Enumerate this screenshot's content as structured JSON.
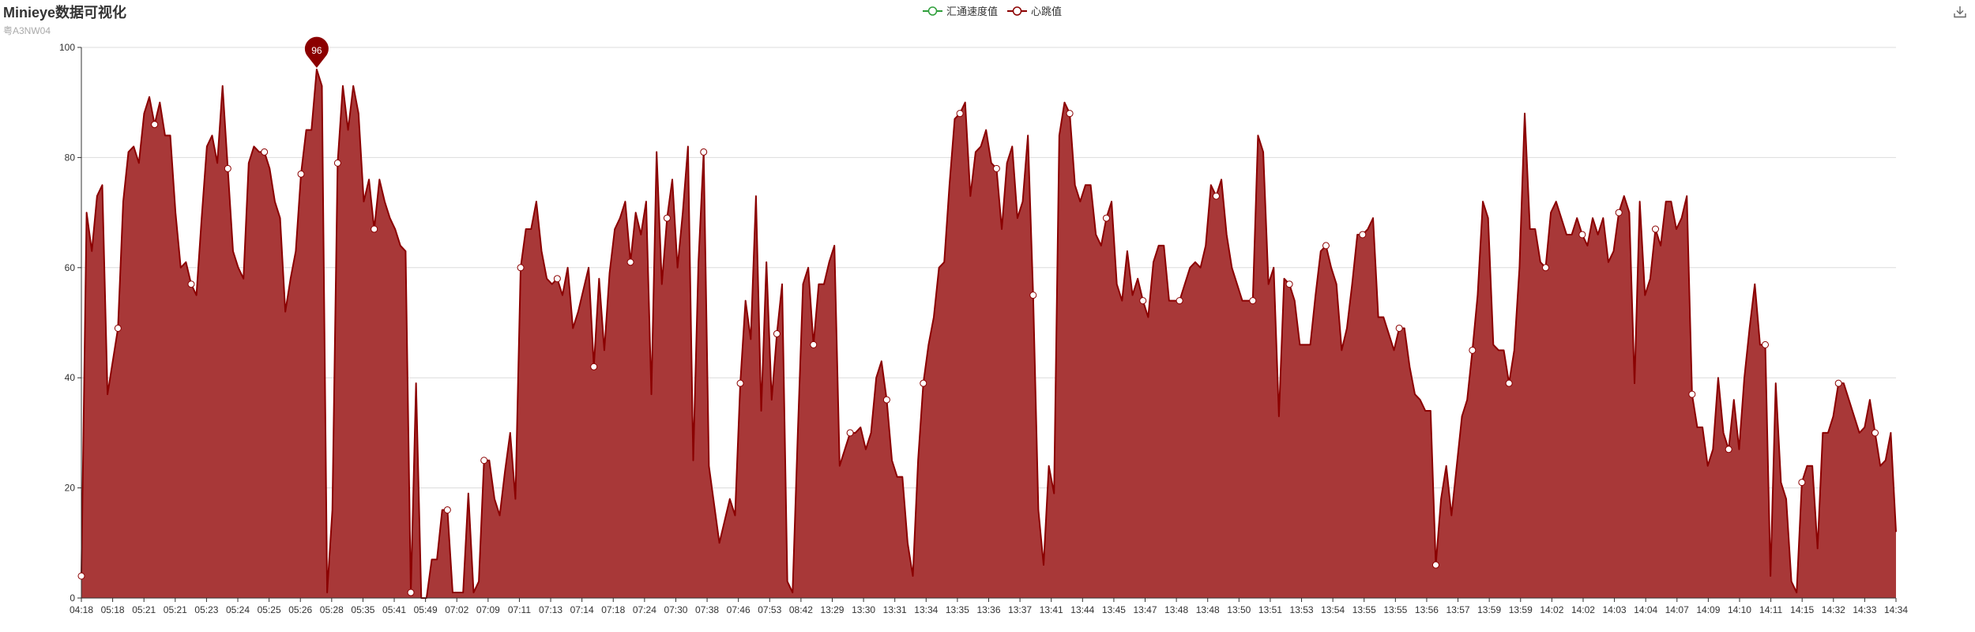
{
  "title": "Minieye数据可视化",
  "subtitle": "粤A3NW04",
  "toolbox": {
    "save_icon": "download-icon"
  },
  "colors": {
    "heart": "#8b0000",
    "heart_fill": "#a83838",
    "speed": "#2e9e3a",
    "grid": "#dcdcdc",
    "axis": "#333333"
  },
  "chart_data": {
    "type": "area",
    "title": "Minieye数据可视化",
    "subtitle": "粤A3NW04",
    "xlabel": "",
    "ylabel": "",
    "ylim": [
      0,
      100
    ],
    "yticks": [
      0,
      20,
      40,
      60,
      80,
      100
    ],
    "grid": true,
    "legend_position": "top-center",
    "x_tick_labels": [
      "04:18",
      "05:18",
      "05:21",
      "05:21",
      "05:23",
      "05:24",
      "05:25",
      "05:26",
      "05:28",
      "05:35",
      "05:41",
      "05:49",
      "07:02",
      "07:09",
      "07:11",
      "07:13",
      "07:14",
      "07:18",
      "07:24",
      "07:30",
      "07:38",
      "07:46",
      "07:53",
      "08:42",
      "13:29",
      "13:30",
      "13:31",
      "13:34",
      "13:35",
      "13:36",
      "13:37",
      "13:41",
      "13:44",
      "13:45",
      "13:47",
      "13:48",
      "13:48",
      "13:50",
      "13:51",
      "13:53",
      "13:54",
      "13:55",
      "13:55",
      "13:56",
      "13:57",
      "13:59",
      "13:59",
      "14:02",
      "14:02",
      "14:03",
      "14:04",
      "14:07",
      "14:09",
      "14:10",
      "14:11",
      "14:15",
      "14:32",
      "14:33",
      "14:34"
    ],
    "series": [
      {
        "name": "汇通速度值",
        "values": []
      },
      {
        "name": "心跳值",
        "values": [
          4,
          70,
          63,
          73,
          75,
          37,
          43,
          49,
          72,
          81,
          82,
          79,
          88,
          91,
          86,
          90,
          84,
          84,
          70,
          60,
          61,
          57,
          55,
          69,
          82,
          84,
          79,
          93,
          78,
          63,
          60,
          58,
          79,
          82,
          81,
          81,
          78,
          72,
          69,
          52,
          58,
          63,
          77,
          85,
          85,
          96,
          93,
          1,
          16,
          79,
          93,
          85,
          93,
          88,
          72,
          76,
          67,
          76,
          72,
          69,
          67,
          64,
          63,
          1,
          39,
          0,
          0,
          7,
          7,
          16,
          16,
          1,
          1,
          1,
          19,
          1,
          3,
          25,
          25,
          18,
          15,
          23,
          30,
          18,
          60,
          67,
          67,
          72,
          63,
          58,
          57,
          58,
          55,
          60,
          49,
          52,
          56,
          60,
          42,
          58,
          45,
          59,
          67,
          69,
          72,
          61,
          70,
          66,
          72,
          37,
          81,
          57,
          69,
          76,
          60,
          70,
          82,
          25,
          61,
          81,
          24,
          17,
          10,
          14,
          18,
          15,
          39,
          54,
          47,
          73,
          34,
          61,
          36,
          48,
          57,
          3,
          1,
          30,
          57,
          60,
          46,
          57,
          57,
          61,
          64,
          24,
          27,
          30,
          30,
          31,
          27,
          30,
          40,
          43,
          36,
          25,
          22,
          22,
          10,
          4,
          25,
          39,
          46,
          51,
          60,
          61,
          75,
          87,
          88,
          90,
          73,
          81,
          82,
          85,
          79,
          78,
          67,
          79,
          82,
          69,
          72,
          84,
          55,
          16,
          6,
          24,
          19,
          84,
          90,
          88,
          75,
          72,
          75,
          75,
          66,
          64,
          69,
          72,
          57,
          54,
          63,
          55,
          58,
          54,
          51,
          61,
          64,
          64,
          54,
          54,
          54,
          57,
          60,
          61,
          60,
          64,
          75,
          73,
          76,
          66,
          60,
          57,
          54,
          54,
          54,
          84,
          81,
          57,
          60,
          33,
          58,
          57,
          54,
          46,
          46,
          46,
          55,
          63,
          64,
          60,
          57,
          45,
          49,
          57,
          66,
          66,
          67,
          69,
          51,
          51,
          48,
          45,
          49,
          49,
          42,
          37,
          36,
          34,
          34,
          6,
          18,
          24,
          15,
          24,
          33,
          36,
          45,
          55,
          72,
          69,
          46,
          45,
          45,
          39,
          45,
          60,
          88,
          67,
          67,
          61,
          60,
          70,
          72,
          69,
          66,
          66,
          69,
          66,
          64,
          69,
          66,
          69,
          61,
          63,
          70,
          73,
          70,
          39,
          72,
          55,
          58,
          67,
          64,
          72,
          72,
          67,
          69,
          73,
          37,
          31,
          31,
          24,
          27,
          40,
          30,
          27,
          36,
          27,
          40,
          49,
          57,
          46,
          46,
          4,
          39,
          21,
          18,
          3,
          1,
          21,
          24,
          24,
          9,
          30,
          30,
          33,
          39,
          39,
          36,
          33,
          30,
          31,
          36,
          30,
          24,
          25,
          30,
          12
        ]
      }
    ],
    "annotations": [
      {
        "label": "96",
        "series": "心跳值",
        "type": "max"
      }
    ]
  }
}
